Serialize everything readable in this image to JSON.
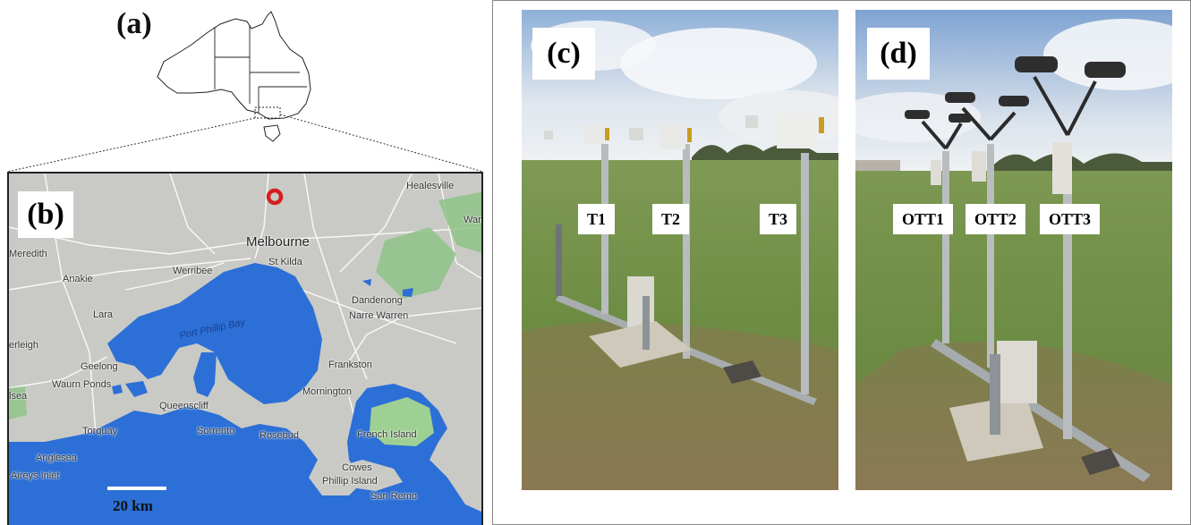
{
  "panels": {
    "a": {
      "letter": "(a)"
    },
    "b": {
      "letter": "(b)",
      "scale_label": "20 km",
      "places": [
        {
          "name": "Healesville"
        },
        {
          "name": "Warb"
        },
        {
          "name": "Melbourne"
        },
        {
          "name": "St Kilda"
        },
        {
          "name": "Meredith"
        },
        {
          "name": "Anakie"
        },
        {
          "name": "Werribee"
        },
        {
          "name": "Lara"
        },
        {
          "name": "Port Phillip Bay"
        },
        {
          "name": "Dandenong"
        },
        {
          "name": "Narre Warren"
        },
        {
          "name": "erleigh"
        },
        {
          "name": "Geelong"
        },
        {
          "name": "Frankston"
        },
        {
          "name": "Waurn Ponds"
        },
        {
          "name": "Mornington"
        },
        {
          "name": "lsea"
        },
        {
          "name": "Queenscliff"
        },
        {
          "name": "Torquay"
        },
        {
          "name": "Sorrento"
        },
        {
          "name": "Rosebud"
        },
        {
          "name": "French Island"
        },
        {
          "name": "Anglesea"
        },
        {
          "name": "Aireys Inlet"
        },
        {
          "name": "Cowes"
        },
        {
          "name": "Phillip Island"
        },
        {
          "name": "San Remo"
        }
      ]
    },
    "c": {
      "letter": "(c)",
      "sensors": [
        "T1",
        "T2",
        "T3"
      ]
    },
    "d": {
      "letter": "(d)",
      "sensors": [
        "OTT1",
        "OTT2",
        "OTT3"
      ]
    }
  },
  "colors": {
    "water": "#2c6fd6",
    "land": "#c9cac6",
    "park": "#8fc487",
    "marker": "#d42020"
  }
}
